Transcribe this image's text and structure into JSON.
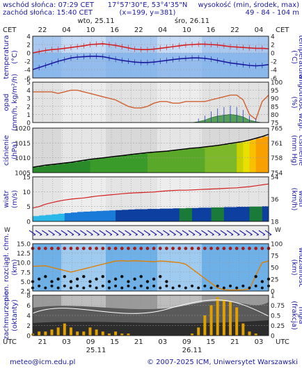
{
  "header": {
    "sunrise": "wschód słońca: 07:29 CET",
    "sunset": "zachód słońca: 15:40 CET",
    "coords": "17°57'30\"E, 53°4'35\"N",
    "grid": "(x=199, y=381)",
    "elev_label": "wysokość (min, środek, max)",
    "elev_values": "49 - 84 - 104 m",
    "day1": "wto, 25.11",
    "day2": "śro, 26.11",
    "tz_top": "CET",
    "tz_bottom": "UTC"
  },
  "footer": {
    "email": "meteo@icm.edu.pl",
    "copyright": "© 2007-2025 ICM, Uniwersytet Warszawski"
  },
  "axis_time": {
    "top_ticks": [
      "22",
      "04",
      "10",
      "16",
      "22",
      "04",
      "10",
      "16",
      "22",
      "04"
    ],
    "bottom_ticks": [
      "21",
      "03",
      "09",
      "15",
      "21",
      "03",
      "09",
      "15",
      "21",
      "03"
    ],
    "bottom_days": [
      "25.11",
      "26.11"
    ]
  },
  "chart_data": [
    {
      "type": "line",
      "panel": "temperature",
      "ylabel_left": "temperatura",
      "unit_left": "(°C)",
      "ylabel_right": "temperatura",
      "unit_right": "(°C)",
      "ylim": [
        -6,
        4
      ],
      "yticks": [
        "4",
        "2",
        "0",
        "-2",
        "-4",
        "-6"
      ],
      "series": [
        {
          "name": "",
          "color": "#d42020",
          "values": [
            0.0,
            0.3,
            0.6,
            0.8,
            0.9,
            1.1,
            1.3,
            1.5,
            1.7,
            2.0,
            2.1,
            2.2,
            2.0,
            1.8,
            1.5,
            1.2,
            0.9,
            0.8,
            0.8,
            0.9,
            1.1,
            1.3,
            1.5,
            1.7,
            1.9,
            2.0,
            2.1,
            2.1,
            2.0,
            1.9,
            1.7,
            1.5,
            1.4,
            1.3,
            1.2,
            1.1,
            1.1,
            1.0
          ]
        },
        {
          "name": "",
          "color": "#1a1aa0",
          "values": [
            -4.0,
            -3.5,
            -3.0,
            -2.5,
            -2.0,
            -1.6,
            -1.2,
            -1.0,
            -0.9,
            -0.8,
            -0.8,
            -0.9,
            -1.2,
            -1.5,
            -1.8,
            -2.0,
            -2.2,
            -2.3,
            -2.3,
            -2.2,
            -2.0,
            -1.8,
            -1.6,
            -1.4,
            -1.3,
            -1.2,
            -1.2,
            -1.3,
            -1.5,
            -1.8,
            -2.1,
            -2.4,
            -2.6,
            -2.8,
            -3.0,
            -3.1,
            -3.0,
            -2.8
          ]
        }
      ]
    },
    {
      "type": "line",
      "panel": "precipitation",
      "ylabel_left": "opad",
      "unit_left": "(mm/h, kg/m²/h)",
      "ylabel_right": "wilgotność wzgl.",
      "unit_right": "(%)",
      "ylim": [
        0,
        5
      ],
      "yticks": [
        "5",
        "4",
        "3",
        "2",
        "1",
        "0"
      ],
      "ylim_right": [
        75,
        100
      ],
      "yticks_right": [
        "100",
        "95",
        "90",
        "85",
        "80",
        "75"
      ],
      "series": [
        {
          "name": "",
          "color": "#d06030",
          "values": [
            94,
            94,
            94,
            94,
            93,
            94,
            95,
            95,
            94,
            93,
            92,
            91,
            90,
            89,
            87,
            85,
            84,
            84,
            85,
            87,
            88,
            88,
            87,
            87,
            88,
            88,
            88,
            88,
            89,
            90,
            91,
            92,
            92,
            89,
            80,
            77,
            88,
            92
          ]
        },
        {
          "name": "",
          "color": "#2a8a2a",
          "values": [
            0,
            0,
            0,
            0,
            0,
            0,
            0,
            0,
            0,
            0,
            0,
            0,
            0,
            0,
            0,
            0,
            0,
            0,
            0,
            0,
            0,
            0,
            0,
            0,
            0,
            0,
            0.1,
            0.3,
            0.6,
            0.8,
            0.9,
            1.0,
            0.9,
            0.7,
            0.3,
            0.1,
            0,
            0
          ]
        }
      ]
    },
    {
      "type": "area",
      "panel": "pressure",
      "ylabel_left": "ciśnienie",
      "unit_left": "(hPa)",
      "ylabel_right": "ciśnienie",
      "unit_right": "(mm Hg)",
      "ylim": [
        1002,
        1020
      ],
      "yticks": [
        "1020",
        "1015",
        "1010",
        "1005"
      ],
      "yticks_right": [
        "765",
        "761",
        "758",
        "754"
      ],
      "series": [
        {
          "name": "",
          "color": "#000000",
          "values": [
            1004.2,
            1004.6,
            1005.0,
            1005.3,
            1005.6,
            1005.9,
            1006.2,
            1006.6,
            1007.0,
            1007.4,
            1007.7,
            1008.0,
            1008.3,
            1008.6,
            1008.9,
            1009.2,
            1009.5,
            1009.8,
            1010.1,
            1010.3,
            1010.5,
            1010.7,
            1011.0,
            1011.3,
            1011.6,
            1011.9,
            1012.1,
            1012.4,
            1012.7,
            1013.0,
            1013.4,
            1013.8,
            1014.2,
            1014.6,
            1015.2,
            1015.9,
            1016.6,
            1017.5
          ]
        }
      ]
    },
    {
      "type": "line",
      "panel": "wind",
      "ylabel_left": "wiatr",
      "unit_left": "(m/s)",
      "ylabel_right": "wiatr",
      "unit_right": "(km/h)",
      "ylim": [
        0,
        15
      ],
      "yticks": [
        "15",
        "10",
        "5",
        "0"
      ],
      "yticks_right": [
        "54",
        "36",
        "18"
      ],
      "series": [
        {
          "name": "",
          "color": "#d42020",
          "values": [
            4.5,
            5.0,
            5.8,
            6.3,
            6.8,
            7.2,
            7.5,
            7.7,
            7.9,
            8.2,
            8.5,
            8.7,
            8.9,
            9.1,
            9.3,
            9.5,
            9.6,
            9.7,
            9.8,
            9.9,
            10.1,
            10.3,
            10.4,
            10.5,
            10.5,
            10.6,
            10.7,
            10.8,
            10.9,
            11.0,
            11.1,
            11.2,
            11.3,
            11.5,
            11.7,
            12.0,
            12.3,
            12.6
          ]
        },
        {
          "name": "",
          "color": "#0c3fa0",
          "values": [
            1.8,
            2.0,
            2.2,
            2.4,
            2.6,
            2.8,
            3.0,
            3.2,
            3.3,
            3.4,
            3.5,
            3.6,
            3.7,
            3.8,
            3.9,
            4.0,
            4.1,
            4.1,
            4.2,
            4.2,
            4.3,
            4.3,
            4.4,
            4.4,
            4.5,
            4.5,
            4.6,
            4.6,
            4.7,
            4.7,
            4.8,
            4.8,
            4.9,
            4.9,
            5.0,
            5.0,
            5.1,
            5.1
          ]
        }
      ]
    },
    {
      "type": "scatter",
      "panel": "visibility",
      "ylabel_left": "pion. rozciągł. chm.",
      "unit_left": "(km)",
      "ylabel_right": "widzialność",
      "unit_right": "(km)",
      "ylim": [
        0,
        15
      ],
      "yticks": [
        "15.0",
        "12.5",
        "10.0",
        "7.5",
        "5.0",
        "2.5"
      ],
      "yticks_right": [
        "100",
        "75",
        "50",
        "25",
        "0"
      ],
      "series": [
        {
          "name": "",
          "color": "#e08000",
          "values": [
            7.8,
            7.9,
            8.0,
            7.5,
            7.0,
            6.5,
            6.0,
            6.5,
            7.0,
            7.5,
            8.0,
            8.5,
            9.0,
            9.5,
            9.6,
            9.5,
            9.6,
            9.5,
            9.4,
            9.3,
            9.5,
            9.4,
            9.2,
            9.0,
            8.5,
            7.0,
            5.5,
            4.0,
            2.5,
            1.0,
            0.4,
            0.3,
            0.3,
            0.4,
            0.6,
            5.0,
            9.0,
            9.5
          ]
        }
      ]
    },
    {
      "type": "bar",
      "panel": "cloud",
      "ylabel_left": "zachmurzenie",
      "unit_left": "(oktanty)",
      "ylabel_right": "mgła",
      "unit_right": "(frakcja)",
      "ylim": [
        0,
        8
      ],
      "yticks": [
        "8",
        "6",
        "4",
        "2",
        "0"
      ],
      "yticks_right": [
        "1",
        "0.75",
        "0.5",
        "0.25",
        "0"
      ],
      "series": [
        {
          "name": "",
          "color": "#e0a000",
          "values": [
            0.05,
            0.1,
            0.1,
            0.15,
            0.2,
            0.3,
            0.2,
            0.1,
            0.1,
            0.2,
            0.15,
            0.1,
            0.05,
            0.1,
            0.05,
            0.05,
            0.0,
            0.0,
            0.0,
            0.0,
            0.0,
            0.0,
            0.0,
            0.0,
            0.0,
            0.05,
            0.2,
            0.5,
            0.75,
            0.95,
            0.9,
            0.85,
            0.7,
            0.3,
            0.1,
            0.05,
            0.0,
            0.0
          ]
        }
      ]
    }
  ]
}
